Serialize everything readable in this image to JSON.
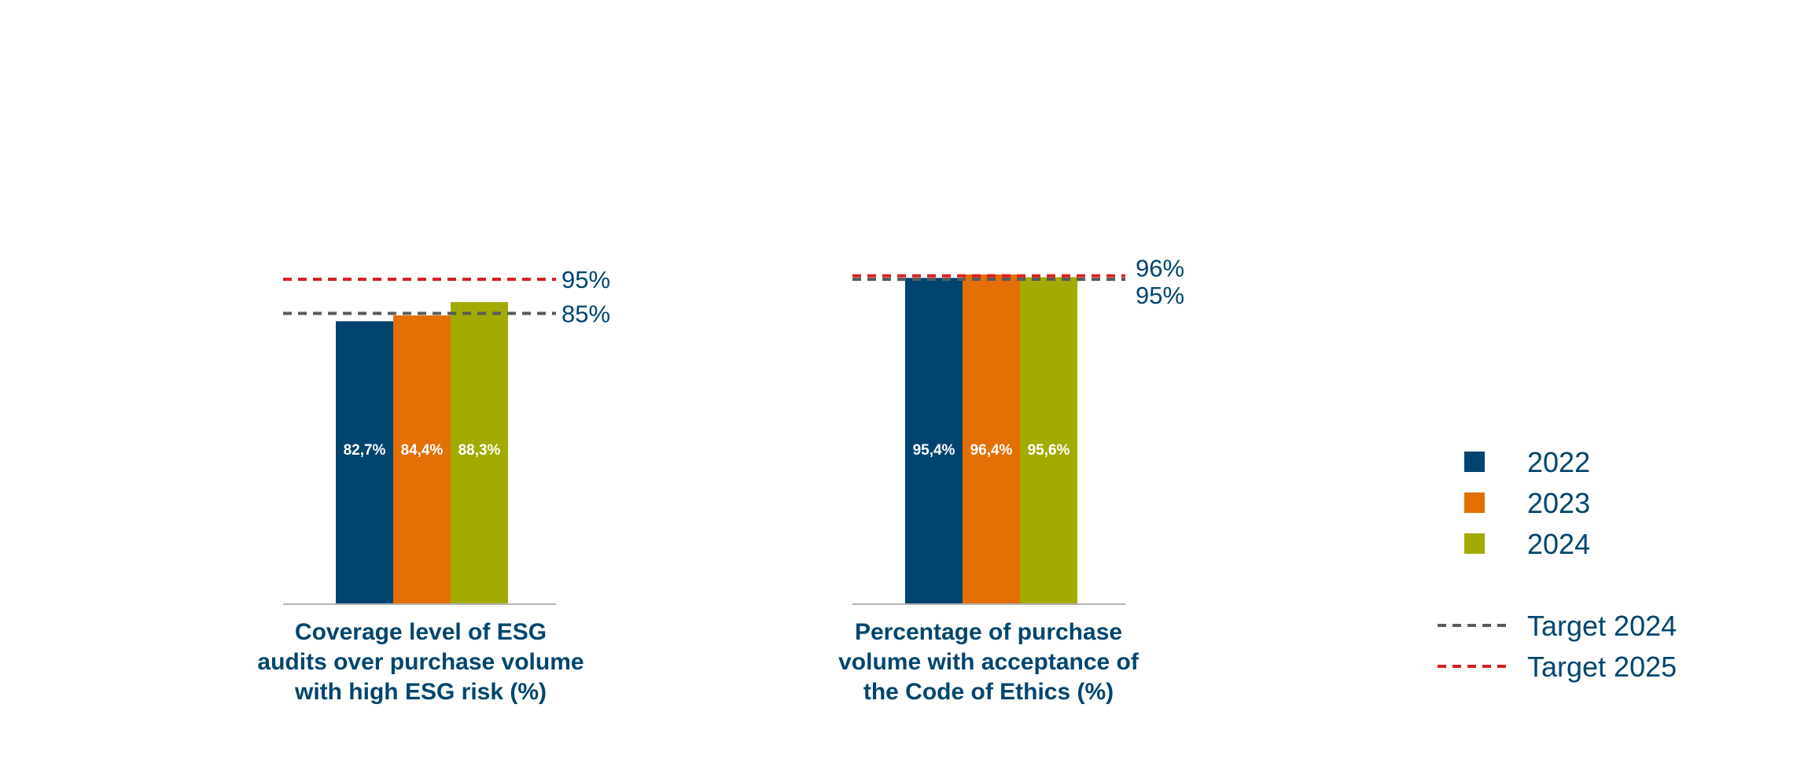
{
  "colors": {
    "2022": "#00456f",
    "2023": "#e46f05",
    "2024": "#a2ab00",
    "target_2024": "#5b5b5b",
    "target_2025": "#d71f24",
    "text": "#00456f",
    "axis": "#b3b3b3"
  },
  "legend": {
    "years": [
      {
        "label": "2022",
        "color": "#00456f"
      },
      {
        "label": "2023",
        "color": "#e46f05"
      },
      {
        "label": "2024",
        "color": "#a2ab00"
      }
    ],
    "targets": [
      {
        "label": "Target 2024",
        "color": "#5b5b5b"
      },
      {
        "label": "Target 2025",
        "color": "#d71f24"
      }
    ]
  },
  "chart_data": [
    {
      "type": "bar",
      "title": "Coverage level of ESG audits over purchase volume with high ESG risk (%)",
      "title_lines": [
        "Coverage level of ESG",
        "audits over purchase volume",
        "with high ESG risk (%)"
      ],
      "categories": [
        "2022",
        "2023",
        "2024"
      ],
      "values": [
        82.7,
        84.4,
        88.3
      ],
      "value_labels": [
        "82,7%",
        "84,4%",
        "88,3%"
      ],
      "targets": [
        {
          "name": "Target 2024",
          "value": 85,
          "label": "85%"
        },
        {
          "name": "Target 2025",
          "value": 95,
          "label": "95%"
        }
      ],
      "ylim": [
        0,
        100
      ],
      "grid": false,
      "legend": "right"
    },
    {
      "type": "bar",
      "title": "Percentage of purchase volume with acceptance of the Code of Ethics (%)",
      "title_lines": [
        "Percentage of purchase",
        "volume with acceptance of",
        "the Code of Ethics (%)"
      ],
      "categories": [
        "2022",
        "2023",
        "2024"
      ],
      "values": [
        95.4,
        96.4,
        95.6
      ],
      "value_labels": [
        "95,4%",
        "96,4%",
        "95,6%"
      ],
      "targets": [
        {
          "name": "Target 2024",
          "value": 95,
          "label": "95%"
        },
        {
          "name": "Target 2025",
          "value": 96,
          "label": "96%"
        }
      ],
      "ylim": [
        0,
        100
      ],
      "grid": false,
      "legend": "right"
    }
  ]
}
